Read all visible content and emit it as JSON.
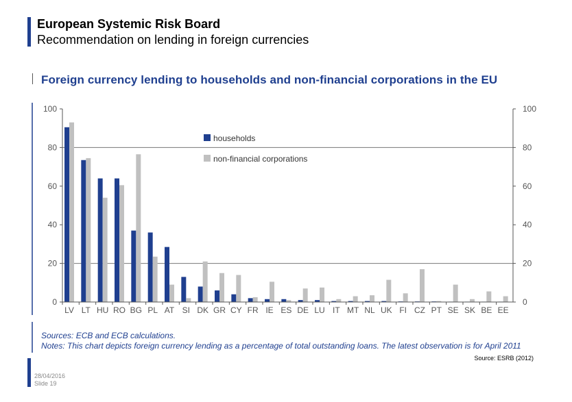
{
  "header": {
    "org": "European Systemic Risk Board",
    "subtitle": "Recommendation on lending in foreign currencies"
  },
  "footer": {
    "date": "28/04/2016",
    "slide": "Slide 19",
    "source_slide": "Source: ESRB (2012)"
  },
  "colors": {
    "households": "#1f3f8f",
    "nfc": "#c0c0c0",
    "accent": "#1f3f8f"
  },
  "chart_data": {
    "type": "bar",
    "title": "Foreign currency lending to households and non-financial corporations in the EU",
    "categories": [
      "LV",
      "LT",
      "HU",
      "RO",
      "BG",
      "PL",
      "AT",
      "SI",
      "DK",
      "GR",
      "CY",
      "FR",
      "IE",
      "ES",
      "DE",
      "LU",
      "IT",
      "MT",
      "NL",
      "UK",
      "FI",
      "CZ",
      "PT",
      "SE",
      "SK",
      "BE",
      "EE"
    ],
    "series": [
      {
        "name": "households",
        "values": [
          90.5,
          73.5,
          64,
          64,
          37,
          36,
          28.5,
          13,
          8,
          6,
          4,
          2,
          1.5,
          1.5,
          1,
          1,
          0.5,
          0.5,
          0.5,
          0.5,
          0.3,
          0.3,
          0.3,
          0.2,
          0.2,
          0.2,
          0.2
        ]
      },
      {
        "name": "non-financial corporations",
        "values": [
          93,
          74.5,
          54,
          60.5,
          76.5,
          23.5,
          9,
          2,
          21,
          15,
          14,
          2.5,
          10.5,
          1,
          7,
          7.5,
          1.5,
          3,
          3.5,
          11.5,
          4.5,
          17,
          0.5,
          9,
          1.5,
          5.5,
          3
        ]
      }
    ],
    "ylim": [
      0,
      100
    ],
    "yticks": [
      0,
      20,
      40,
      60,
      80,
      100
    ],
    "gridlines": [
      20,
      80
    ],
    "legend_position": "top-center",
    "source": "Sources: ECB and ECB calculations.",
    "notes": "Notes: This chart depicts foreign currency lending as a percentage of total outstanding loans. The latest observation is for April 2011"
  }
}
